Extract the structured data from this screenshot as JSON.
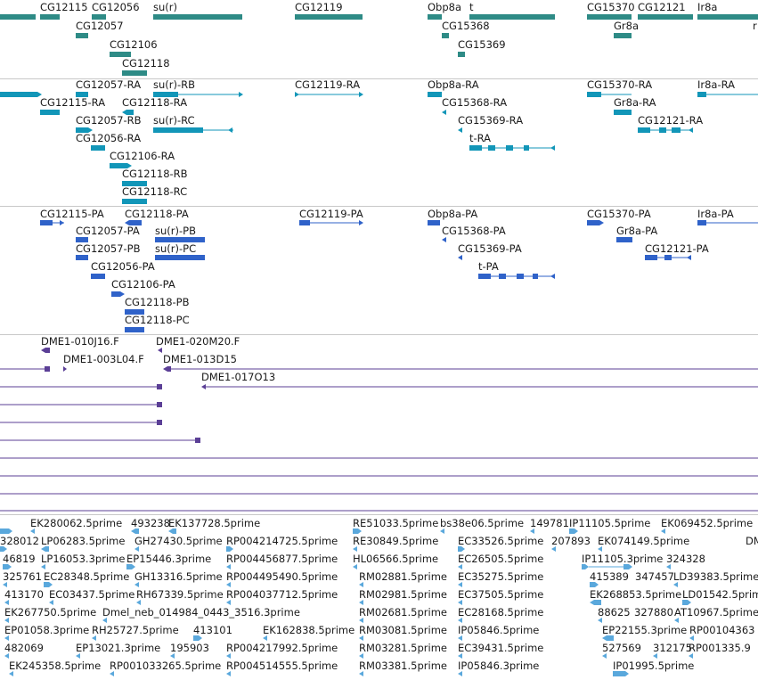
{
  "colors": {
    "gene": "#2e8b86",
    "transcript": "#1296b8",
    "protein": "#2f62c9",
    "clone": "#5b3f96",
    "est": "#5aa8dc",
    "divider": "#c8c8c8"
  },
  "tracks": {
    "genes": [
      {
        "id": "g1",
        "label": "CG12115"
      },
      {
        "id": "g2",
        "label": "CG12056"
      },
      {
        "id": "g3",
        "label": "su(r)"
      },
      {
        "id": "g4",
        "label": "CG12119"
      },
      {
        "id": "g5",
        "label": "Obp8a"
      },
      {
        "id": "g6",
        "label": "t"
      },
      {
        "id": "g7",
        "label": "CG15370"
      },
      {
        "id": "g8",
        "label": "CG12121"
      },
      {
        "id": "g9",
        "label": "Ir8a"
      },
      {
        "id": "g10",
        "label": "CG12057"
      },
      {
        "id": "g11",
        "label": "CG15368"
      },
      {
        "id": "g12",
        "label": "Gr8a"
      },
      {
        "id": "g13",
        "label": "r"
      },
      {
        "id": "g14",
        "label": "CG12106"
      },
      {
        "id": "g15",
        "label": "CG15369"
      },
      {
        "id": "g16",
        "label": "CG12118"
      }
    ],
    "transcripts": [
      {
        "id": "t1",
        "label": "CG12057-RA"
      },
      {
        "id": "t2",
        "label": "su(r)-RB"
      },
      {
        "id": "t3",
        "label": "CG12119-RA"
      },
      {
        "id": "t4",
        "label": "Obp8a-RA"
      },
      {
        "id": "t5",
        "label": "CG15370-RA"
      },
      {
        "id": "t6",
        "label": "Ir8a-RA"
      },
      {
        "id": "t7",
        "label": "CG12115-RA"
      },
      {
        "id": "t8",
        "label": "CG12118-RA"
      },
      {
        "id": "t9",
        "label": "CG15368-RA"
      },
      {
        "id": "t10",
        "label": "Gr8a-RA"
      },
      {
        "id": "t11",
        "label": "CG12057-RB"
      },
      {
        "id": "t12",
        "label": "su(r)-RC"
      },
      {
        "id": "t13",
        "label": "CG15369-RA"
      },
      {
        "id": "t14",
        "label": "CG12121-RA"
      },
      {
        "id": "t15",
        "label": "CG12056-RA"
      },
      {
        "id": "t16",
        "label": "t-RA"
      },
      {
        "id": "t17",
        "label": "CG12106-RA"
      },
      {
        "id": "t18",
        "label": "CG12118-RB"
      },
      {
        "id": "t19",
        "label": "CG12118-RC"
      }
    ],
    "proteins": [
      {
        "id": "p1",
        "label": "CG12115-PA"
      },
      {
        "id": "p2",
        "label": "CG12118-PA"
      },
      {
        "id": "p3",
        "label": "CG12119-PA"
      },
      {
        "id": "p4",
        "label": "Obp8a-PA"
      },
      {
        "id": "p5",
        "label": "CG15370-PA"
      },
      {
        "id": "p6",
        "label": "Ir8a-PA"
      },
      {
        "id": "p7",
        "label": "CG12057-PA"
      },
      {
        "id": "p8",
        "label": "su(r)-PB"
      },
      {
        "id": "p9",
        "label": "CG15368-PA"
      },
      {
        "id": "p10",
        "label": "Gr8a-PA"
      },
      {
        "id": "p11",
        "label": "CG12057-PB"
      },
      {
        "id": "p12",
        "label": "su(r)-PC"
      },
      {
        "id": "p13",
        "label": "CG15369-PA"
      },
      {
        "id": "p14",
        "label": "CG12121-PA"
      },
      {
        "id": "p15",
        "label": "CG12056-PA"
      },
      {
        "id": "p16",
        "label": "t-PA"
      },
      {
        "id": "p17",
        "label": "CG12106-PA"
      },
      {
        "id": "p18",
        "label": "CG12118-PB"
      },
      {
        "id": "p19",
        "label": "CG12118-PC"
      }
    ],
    "clones": [
      {
        "id": "c1",
        "label": "DME1-010J16.F"
      },
      {
        "id": "c2",
        "label": "DME1-020M20.F"
      },
      {
        "id": "c3",
        "label": "DME1-003L04.F"
      },
      {
        "id": "c4",
        "label": "DME1-013D15"
      },
      {
        "id": "c5",
        "label": "DME1-017O13"
      }
    ],
    "ests": [
      {
        "id": "e1",
        "label": "EK280062.5prime"
      },
      {
        "id": "e2",
        "label": "493238"
      },
      {
        "id": "e3",
        "label": "EK137728.5prime"
      },
      {
        "id": "e4",
        "label": "RE51033.5prime"
      },
      {
        "id": "e5",
        "label": "bs38e06.5prime"
      },
      {
        "id": "e6",
        "label": "149781"
      },
      {
        "id": "e7",
        "label": "IP11105.5prime"
      },
      {
        "id": "e8",
        "label": "EK069452.5prime"
      },
      {
        "id": "e9",
        "label": "328012"
      },
      {
        "id": "e10",
        "label": "LP06283.5prime"
      },
      {
        "id": "e11",
        "label": "GH27430.5prime"
      },
      {
        "id": "e12",
        "label": "RP004214725.5prime"
      },
      {
        "id": "e13",
        "label": "RE30849.5prime"
      },
      {
        "id": "e14",
        "label": "EC33526.5prime"
      },
      {
        "id": "e15",
        "label": "207893"
      },
      {
        "id": "e16",
        "label": "EK074149.5prime"
      },
      {
        "id": "e17",
        "label": "DM"
      },
      {
        "id": "e18",
        "label": "46819"
      },
      {
        "id": "e19",
        "label": "LP16053.3prime"
      },
      {
        "id": "e20",
        "label": "EP15446.3prime"
      },
      {
        "id": "e21",
        "label": "RP004456877.5prime"
      },
      {
        "id": "e22",
        "label": "HL06566.5prime"
      },
      {
        "id": "e23",
        "label": "EC26505.5prime"
      },
      {
        "id": "e24",
        "label": "IP11105.3prime"
      },
      {
        "id": "e25",
        "label": "324328"
      },
      {
        "id": "e26",
        "label": "325761"
      },
      {
        "id": "e27",
        "label": "EC28348.5prime"
      },
      {
        "id": "e28",
        "label": "GH13316.5prime"
      },
      {
        "id": "e29",
        "label": "RP004495490.5prime"
      },
      {
        "id": "e30",
        "label": "RM02881.5prime"
      },
      {
        "id": "e31",
        "label": "EC35275.5prime"
      },
      {
        "id": "e32",
        "label": "415389"
      },
      {
        "id": "e33",
        "label": "347457"
      },
      {
        "id": "e34",
        "label": "LD39383.5prime"
      },
      {
        "id": "e35",
        "label": "413170"
      },
      {
        "id": "e36",
        "label": "EC03437.5prime"
      },
      {
        "id": "e37",
        "label": "RH67339.5prime"
      },
      {
        "id": "e38",
        "label": "RP004037712.5prime"
      },
      {
        "id": "e39",
        "label": "RM02981.5prime"
      },
      {
        "id": "e40",
        "label": "EC37505.5prime"
      },
      {
        "id": "e41",
        "label": "EK268853.5prime"
      },
      {
        "id": "e42",
        "label": "LD01542.5prime"
      },
      {
        "id": "e43",
        "label": "EK267750.5prime"
      },
      {
        "id": "e44",
        "label": "Dmel_neb_014984_0443_3516.3prime"
      },
      {
        "id": "e45",
        "label": "RM02681.5prime"
      },
      {
        "id": "e46",
        "label": "EC28168.5prime"
      },
      {
        "id": "e47",
        "label": "88625"
      },
      {
        "id": "e48",
        "label": "327880"
      },
      {
        "id": "e49",
        "label": "AT10967.5prime"
      },
      {
        "id": "e50",
        "label": "EP01058.3prime"
      },
      {
        "id": "e51",
        "label": "RH25727.5prime"
      },
      {
        "id": "e52",
        "label": "413101"
      },
      {
        "id": "e53",
        "label": "EK162838.5prime"
      },
      {
        "id": "e54",
        "label": "RM03081.5prime"
      },
      {
        "id": "e55",
        "label": "IP05846.5prime"
      },
      {
        "id": "e56",
        "label": "EP22155.3prime"
      },
      {
        "id": "e57",
        "label": "RP00104363"
      },
      {
        "id": "e58",
        "label": "482069"
      },
      {
        "id": "e59",
        "label": "EP13021.3prime"
      },
      {
        "id": "e60",
        "label": "195903"
      },
      {
        "id": "e61",
        "label": "RP004217992.5prime"
      },
      {
        "id": "e62",
        "label": "RM03281.5prime"
      },
      {
        "id": "e63",
        "label": "EC39431.5prime"
      },
      {
        "id": "e64",
        "label": "527569"
      },
      {
        "id": "e65",
        "label": "312175"
      },
      {
        "id": "e66",
        "label": "RP001335.9"
      },
      {
        "id": "e67",
        "label": "EK245358.5prime"
      },
      {
        "id": "e68",
        "label": "RP001033265.5prime"
      },
      {
        "id": "e69",
        "label": "RP004514555.5prime"
      },
      {
        "id": "e70",
        "label": "RM03381.5prime"
      },
      {
        "id": "e71",
        "label": "IP05846.3prime"
      },
      {
        "id": "e72",
        "label": "IP01995.5prime"
      }
    ]
  }
}
